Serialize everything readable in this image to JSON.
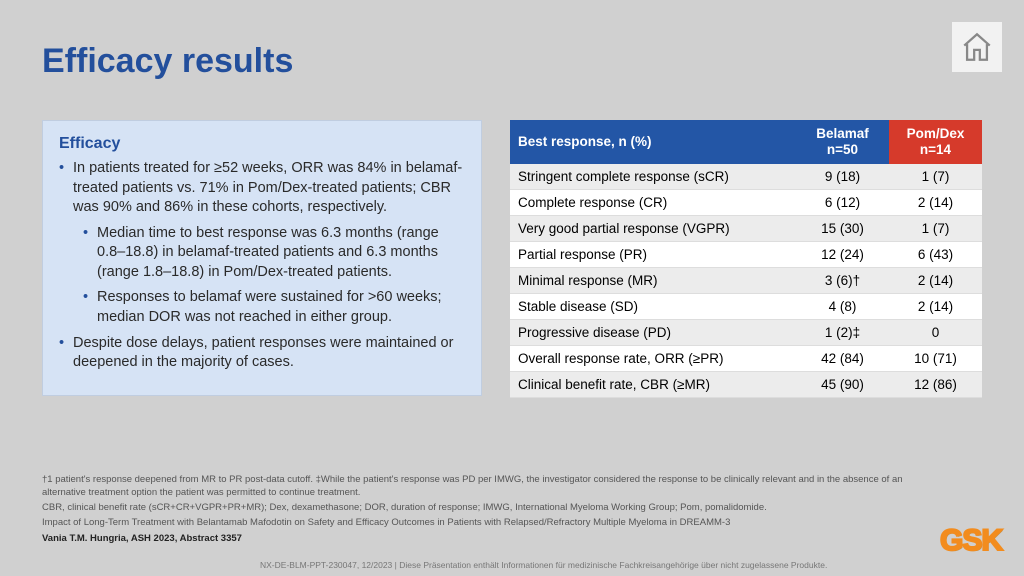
{
  "title": "Efficacy results",
  "efficacy": {
    "heading": "Efficacy",
    "b1": "In patients treated for ≥52 weeks, ORR was 84% in belamaf-treated patients vs. 71% in Pom/Dex-treated patients; CBR was 90% and 86% in these cohorts, respectively.",
    "b1a": "Median time to best response was 6.3 months (range 0.8–18.8) in belamaf-treated patients and 6.3 months (range 1.8–18.8) in Pom/Dex-treated patients.",
    "b1b": "Responses to belamaf were sustained for >60 weeks; median DOR was not reached in either group.",
    "b2": "Despite dose delays, patient responses were maintained or deepened in the majority of cases."
  },
  "table": {
    "h1": "Best response, n (%)",
    "h2a": "Belamaf",
    "h2b": "n=50",
    "h3a": "Pom/Dex",
    "h3b": "n=14",
    "rows": [
      {
        "c1": "Stringent complete response (sCR)",
        "c2": "9 (18)",
        "c3": "1 (7)"
      },
      {
        "c1": "Complete response (CR)",
        "c2": "6 (12)",
        "c3": "2 (14)"
      },
      {
        "c1": "Very good partial response (VGPR)",
        "c2": "15 (30)",
        "c3": "1 (7)"
      },
      {
        "c1": "Partial response (PR)",
        "c2": "12 (24)",
        "c3": "6 (43)"
      },
      {
        "c1": "Minimal response (MR)",
        "c2": "3 (6)†",
        "c3": "2 (14)"
      },
      {
        "c1": "Stable disease (SD)",
        "c2": "4 (8)",
        "c3": "2 (14)"
      },
      {
        "c1": "Progressive disease (PD)",
        "c2": "1 (2)‡",
        "c3": "0"
      },
      {
        "c1": "Overall response rate, ORR (≥PR)",
        "c2": "42 (84)",
        "c3": "10 (71)"
      },
      {
        "c1": "Clinical benefit rate, CBR (≥MR)",
        "c2": "45 (90)",
        "c3": "12 (86)"
      }
    ]
  },
  "foot": {
    "f1": "†1 patient's response deepened from MR to PR post-data cutoff. ‡While the patient's response was PD per IMWG, the investigator considered the response to be clinically relevant and in the absence of an alternative treatment option the patient was permitted to continue treatment.",
    "f2": "CBR, clinical benefit rate (sCR+CR+VGPR+PR+MR); Dex, dexamethasone; DOR, duration of response; IMWG, International Myeloma Working Group; Pom, pomalidomide.",
    "f3": "Impact of Long-Term Treatment with Belantamab Mafodotin on Safety and Efficacy Outcomes in Patients with Relapsed/Refractory Multiple Myeloma in DREAMM-3",
    "f4": "Vania T.M. Hungria, ASH 2023, Abstract 3357",
    "bar": "NX-DE-BLM-PPT-230047, 12/2023 | Diese Präsentation enthält Informationen für medizinische Fachkreisangehörige über nicht zugelassene Produkte."
  },
  "logo_text": "GSK"
}
